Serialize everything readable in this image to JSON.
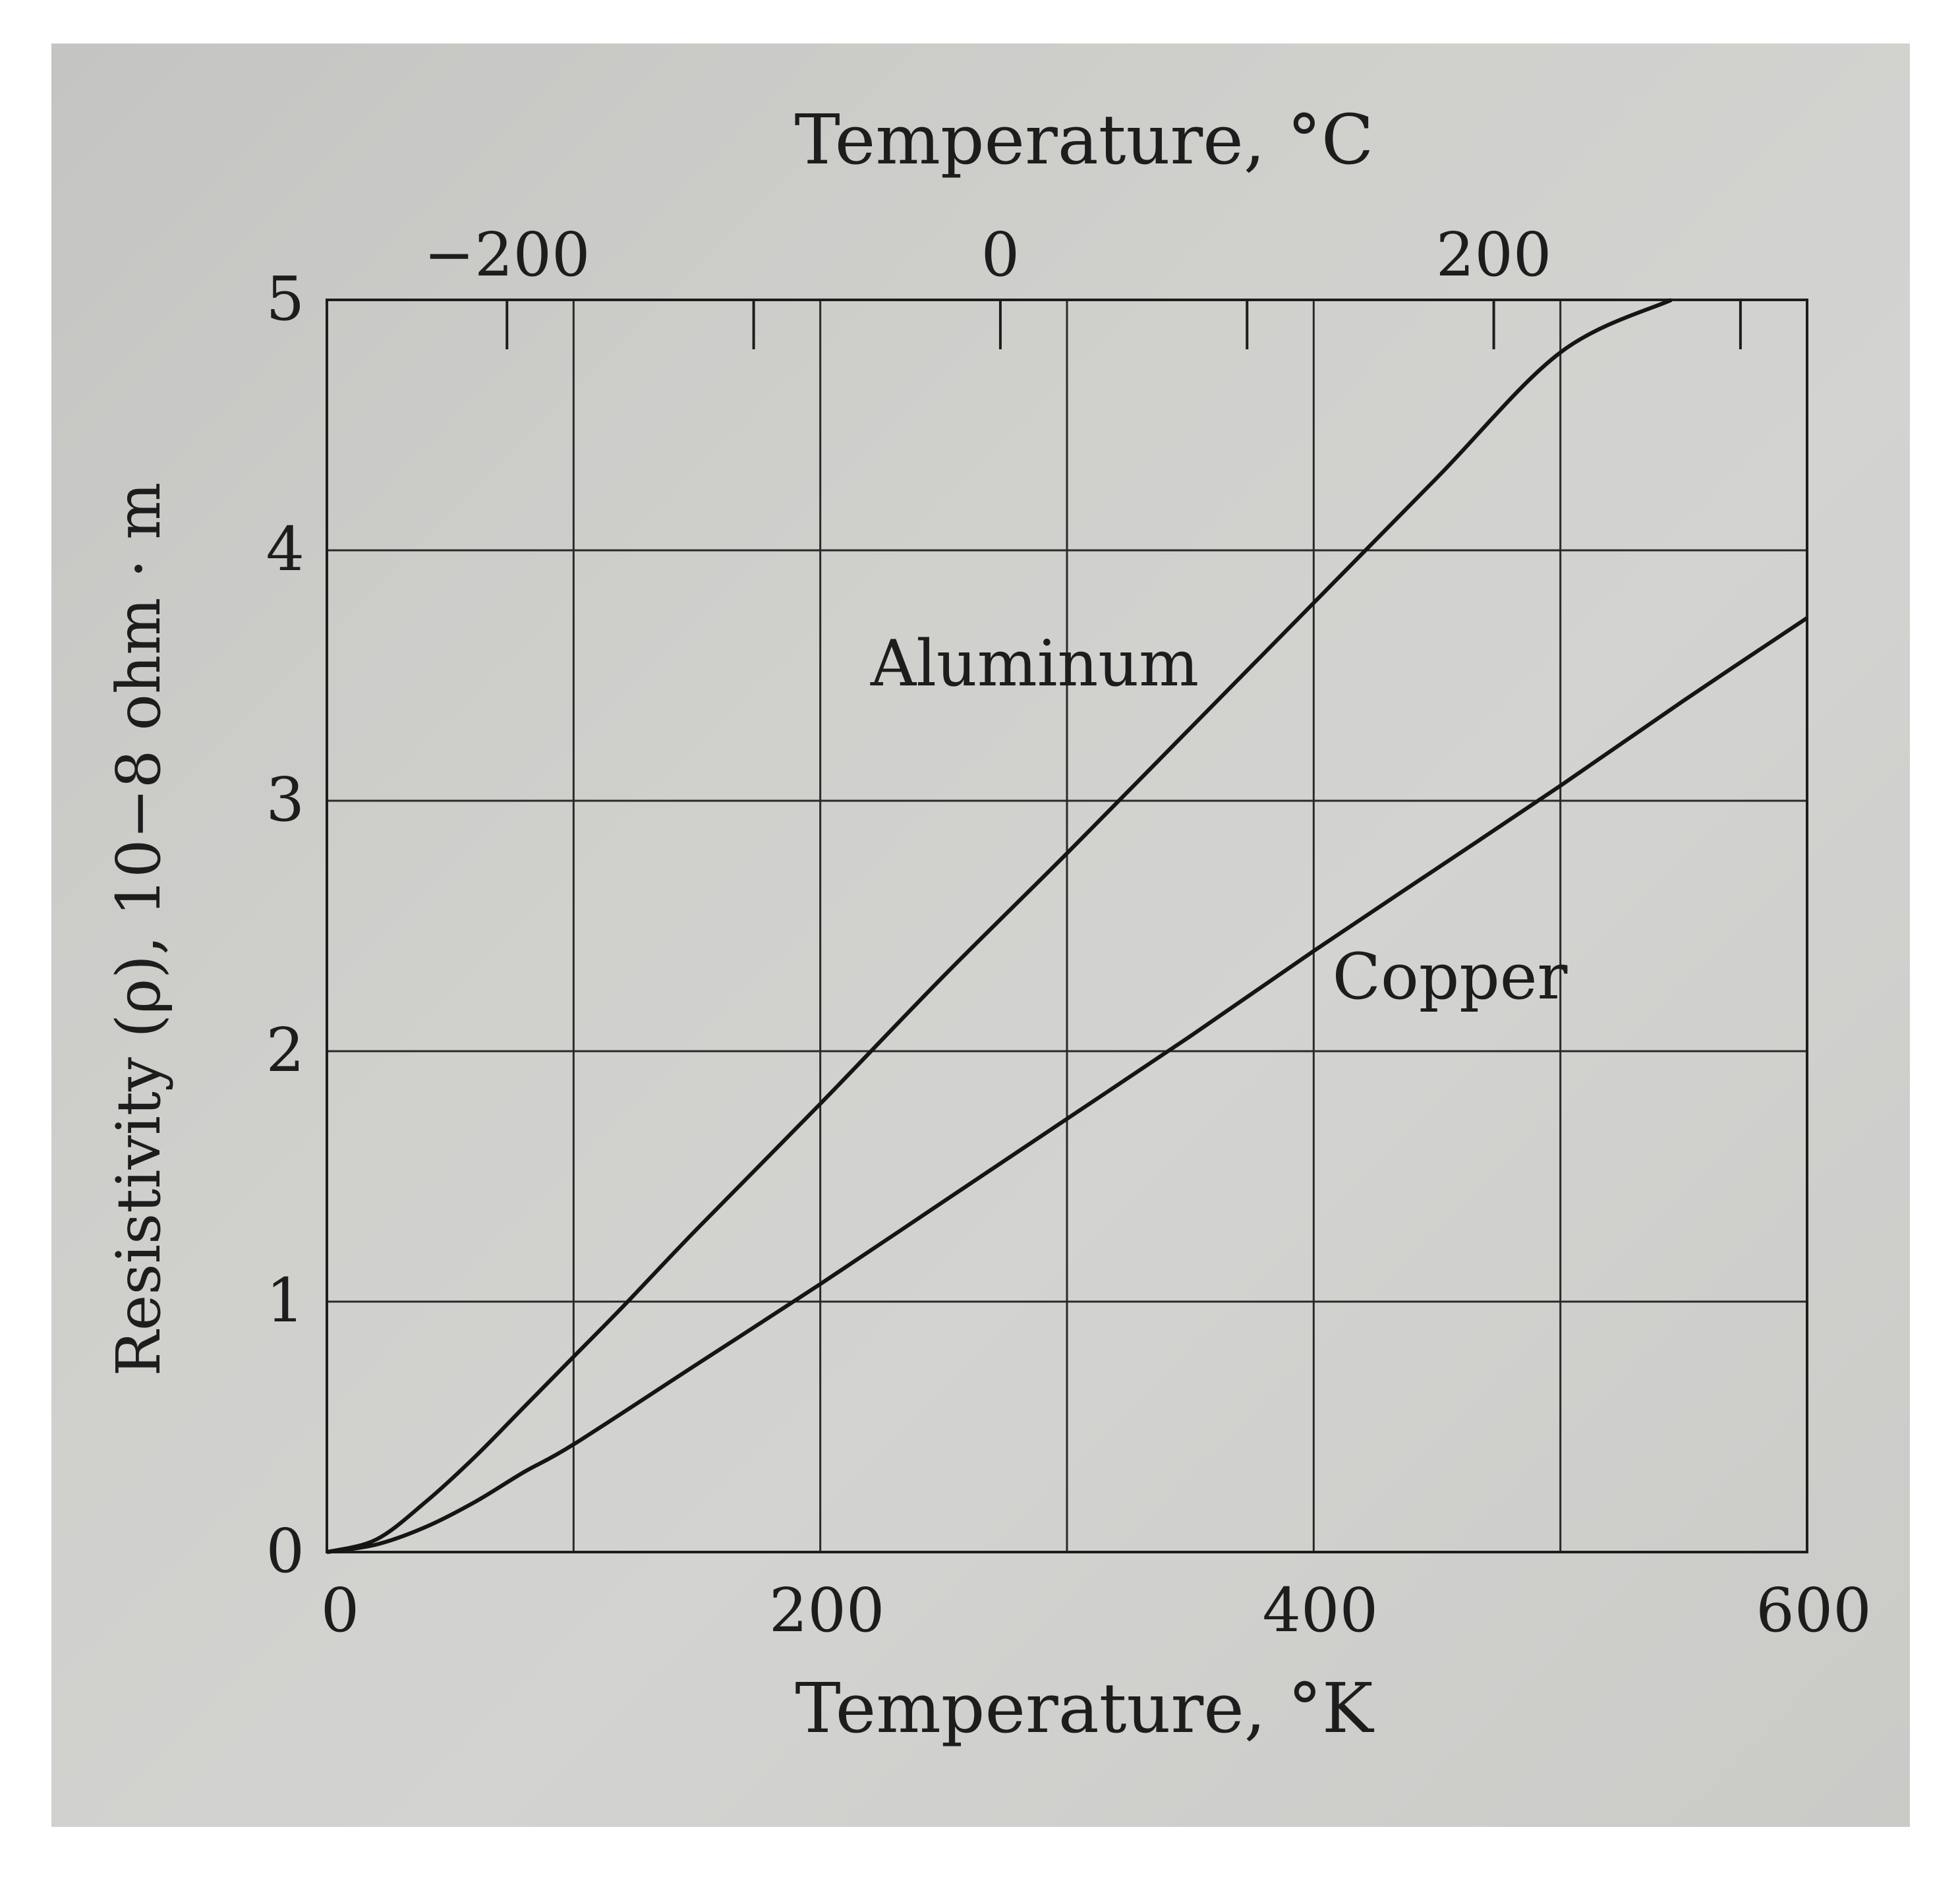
{
  "chart_data": {
    "type": "line",
    "title": "",
    "xlabel": "Temperature, °K",
    "ylabel": "Resistivity (ρ), 10−8 ohm · m",
    "secondary_xlabel": "Temperature, °C",
    "xlim": [
      0,
      600
    ],
    "ylim": [
      0,
      5
    ],
    "x_ticks": [
      "0",
      "200",
      "400",
      "600"
    ],
    "y_ticks": [
      "0",
      "1",
      "2",
      "3",
      "4",
      "5"
    ],
    "secondary_x_ticks": [
      "−200",
      "0",
      "200"
    ],
    "secondary_x_tick_values_celsius": [
      -200,
      -100,
      0,
      100,
      200,
      300
    ],
    "grid": true,
    "series": [
      {
        "name": "Aluminum",
        "x": [
          0,
          20,
          40,
          60,
          80,
          100,
          120,
          150,
          200,
          250,
          300,
          350,
          400,
          450,
          500,
          545
        ],
        "y": [
          0,
          0.05,
          0.2,
          0.38,
          0.58,
          0.78,
          0.98,
          1.29,
          1.79,
          2.3,
          2.79,
          3.29,
          3.79,
          4.29,
          4.79,
          5.0
        ]
      },
      {
        "name": "Copper",
        "x": [
          0,
          20,
          40,
          60,
          80,
          100,
          150,
          200,
          250,
          300,
          350,
          400,
          450,
          500,
          550,
          600
        ],
        "y": [
          0,
          0.03,
          0.1,
          0.2,
          0.32,
          0.43,
          0.75,
          1.07,
          1.4,
          1.73,
          2.06,
          2.4,
          2.73,
          3.06,
          3.4,
          3.73
        ]
      }
    ]
  }
}
